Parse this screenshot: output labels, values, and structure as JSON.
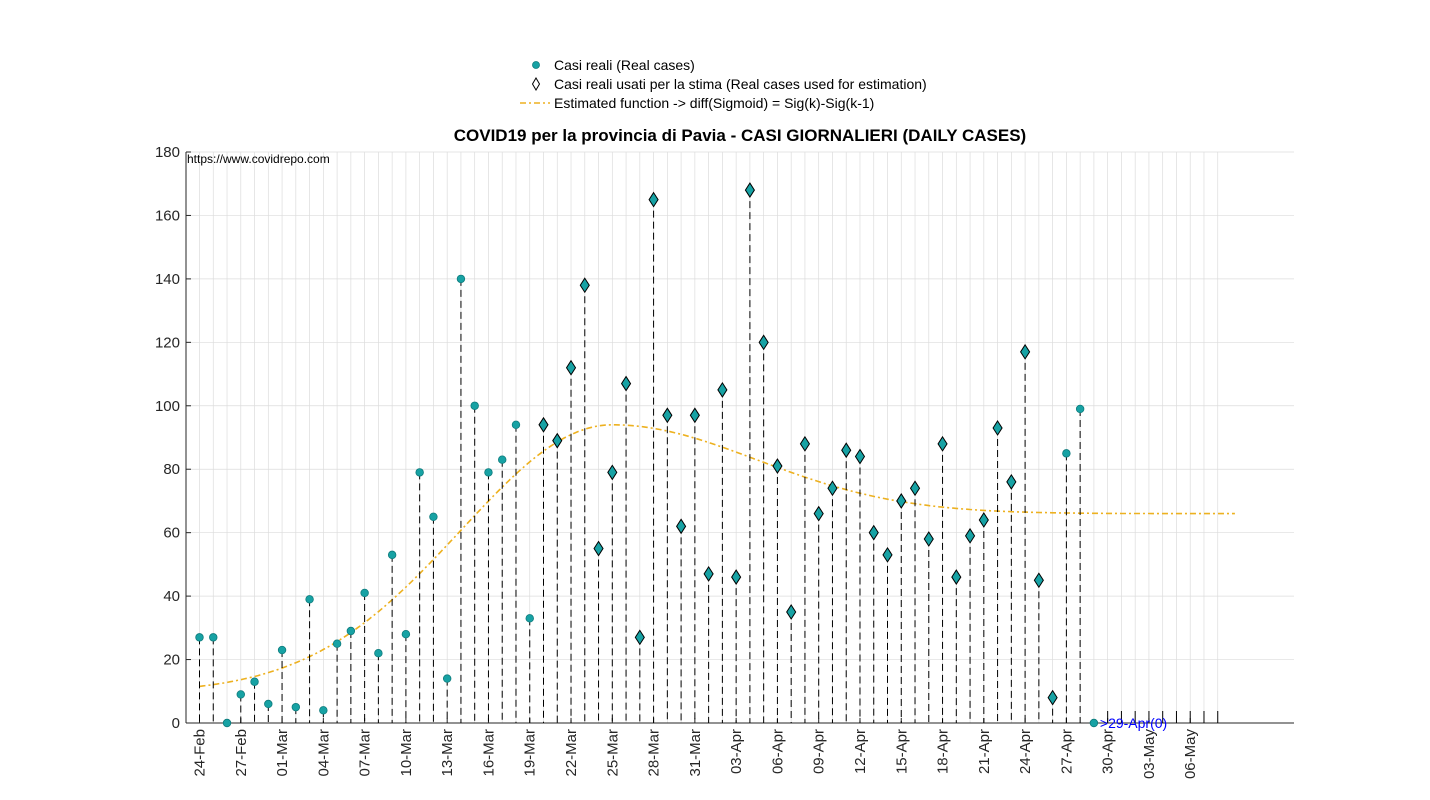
{
  "chart_data": {
    "type": "scatter",
    "title": "COVID19 per la provincia di Pavia - CASI GIORNALIERI (DAILY CASES)",
    "url_note": "https://www.covidrepo.com",
    "annotation": ">29-Apr(0)",
    "xlabel": "",
    "ylabel": "",
    "ylim": [
      0,
      180
    ],
    "yticks": [
      0,
      20,
      40,
      60,
      80,
      100,
      120,
      140,
      160,
      180
    ],
    "grid": true,
    "legend_position": "top-center",
    "legend": {
      "real": "Casi reali (Real cases)",
      "used": "Casi reali usati per la stima (Real cases used for estimation)",
      "fit": "Estimated function -> diff(Sigmoid) = Sig(k)-Sig(k-1)"
    },
    "x_tick_labels": [
      "24-Feb",
      "27-Feb",
      "01-Mar",
      "04-Mar",
      "07-Mar",
      "10-Mar",
      "13-Mar",
      "16-Mar",
      "19-Mar",
      "22-Mar",
      "25-Mar",
      "28-Mar",
      "31-Mar",
      "03-Apr",
      "06-Apr",
      "09-Apr",
      "12-Apr",
      "15-Apr",
      "18-Apr",
      "21-Apr",
      "24-Apr",
      "27-Apr",
      "30-Apr",
      "03-May",
      "06-May"
    ],
    "start_date": "24-Feb",
    "dates_count": 75,
    "real_cases": [
      27,
      27,
      0,
      9,
      13,
      6,
      23,
      5,
      39,
      4,
      25,
      29,
      41,
      22,
      53,
      28,
      79,
      65,
      14,
      140,
      100,
      79,
      83,
      94,
      33,
      94,
      89,
      112,
      138,
      55,
      79,
      107,
      27,
      165,
      97,
      62,
      97,
      47,
      105,
      46,
      168,
      120,
      81,
      35,
      88,
      66,
      74,
      86,
      84,
      60,
      53,
      70,
      74,
      58,
      88,
      46,
      59,
      64,
      93,
      76,
      117,
      45,
      8,
      85,
      99,
      0
    ],
    "estimation_range": [
      25,
      62
    ],
    "fit_curve": {
      "baseline": 66,
      "start_value": 9.5,
      "peak": 94,
      "peak_date": "25-Mar",
      "end_date": "10-May"
    },
    "colors": {
      "real": "#17a2a4",
      "fit": "#edb120",
      "annotation": "#0000ff",
      "grid": "#dcdcdc"
    }
  }
}
